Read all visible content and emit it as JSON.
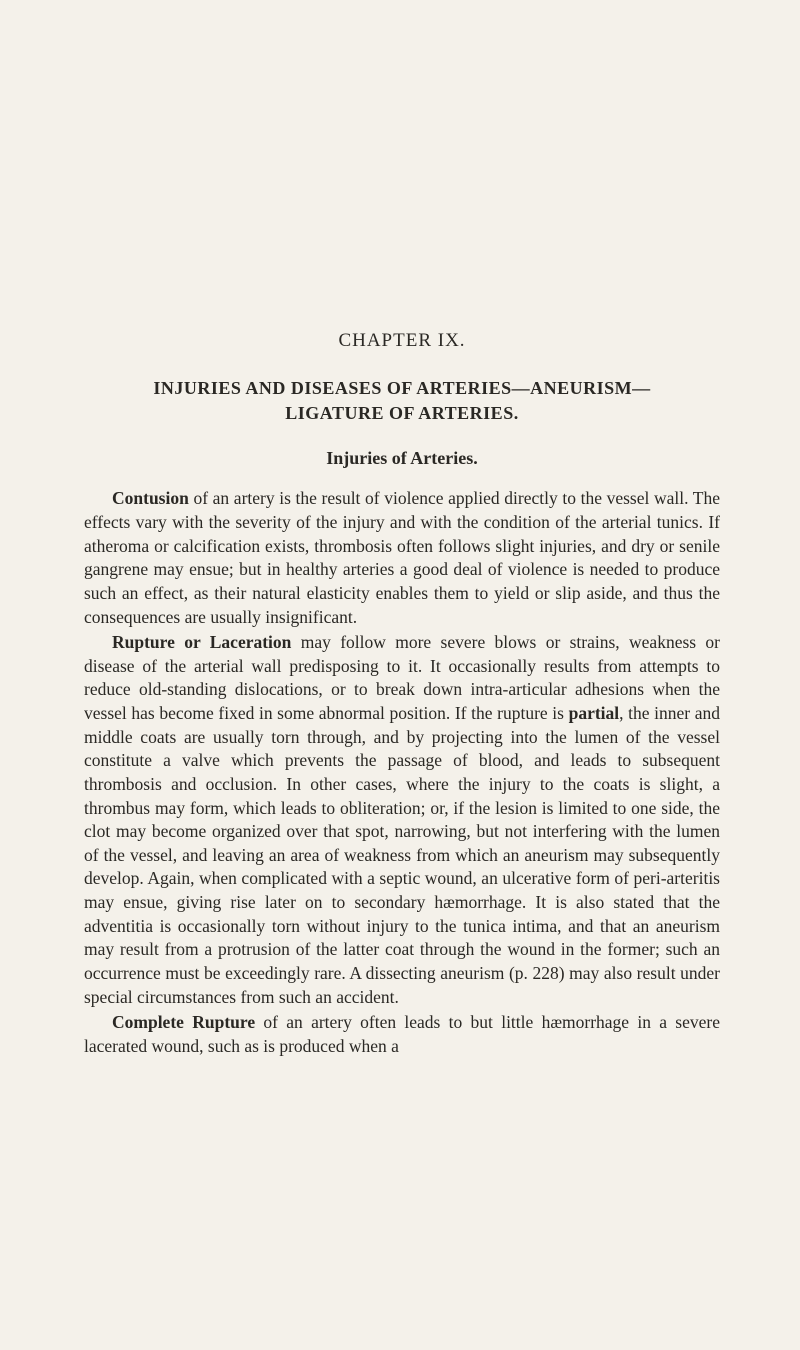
{
  "chapter": {
    "label": "CHAPTER IX.",
    "title_line1": "INJURIES AND DISEASES OF ARTERIES—ANEURISM—",
    "title_line2": "LIGATURE OF ARTERIES.",
    "section_heading": "Injuries of Arteries."
  },
  "paragraphs": {
    "p1_lead": "Contusion",
    "p1_rest": " of an artery is the result of violence applied directly to the vessel wall. The effects vary with the severity of the injury and with the condition of the arterial tunics. If atheroma or calcification exists, thrombosis often follows slight injuries, and dry or senile gangrene may ensue; but in healthy arteries a good deal of violence is needed to produce such an effect, as their natural elasticity enables them to yield or slip aside, and thus the consequences are usually insignificant.",
    "p2_lead": "Rupture or Laceration",
    "p2_mid1": " may follow more severe blows or strains, weakness or disease of the arterial wall predisposing to it. It occasionally results from attempts to reduce old-standing disloca­tions, or to break down intra-articular adhesions when the vessel has become fixed in some abnormal position. If the rupture is ",
    "p2_partial": "partial",
    "p2_rest": ", the inner and middle coats are usually torn through, and by projecting into the lumen of the vessel constitute a valve which prevents the passage of blood, and leads to subsequent thrombosis and occlusion. In other cases, where the injury to the coats is slight, a thrombus may form, which leads to obliteration; or, if the lesion is limited to one side, the clot may become organized over that spot, narrowing, but not interfering with the lumen of the vessel, and leaving an area of weakness from which an aneurism may subsequently develop. Again, when complicated with a septic wound, an ulcerative form of peri-arteritis may ensue, giving rise later on to secondary hæmorrhage. It is also stated that the adventitia is occasionally torn without injury to the tunica intima, and that an aneurism may result from a protrusion of the latter coat through the wound in the former; such an occurrence must be exceedingly rare. A dissecting aneurism (p. 228) may also result under special circumstances from such an accident.",
    "p3_lead": "Complete Rupture",
    "p3_rest": " of an artery often leads to but little hæmor­rhage in a severe lacerated wound, such as is produced when a"
  }
}
